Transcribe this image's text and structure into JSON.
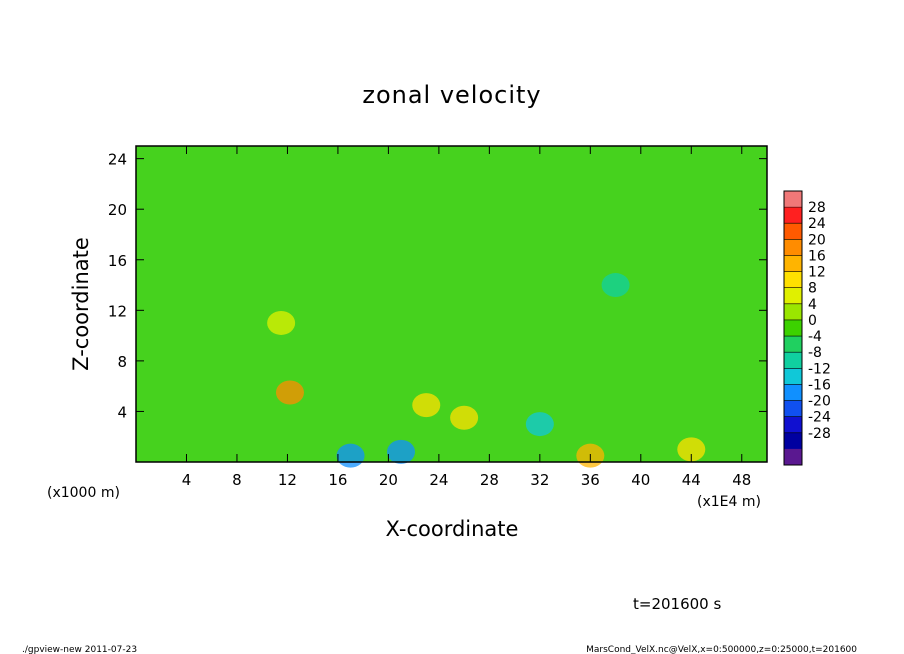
{
  "chart_data": {
    "type": "heatmap",
    "title": "zonal velocity",
    "xlabel": "X-coordinate",
    "ylabel": "Z-coordinate",
    "x_unit_label": "(x1E4 m)",
    "y_unit_label": "(x1000 m)",
    "x_ticks": [
      "4",
      "8",
      "12",
      "16",
      "20",
      "24",
      "28",
      "32",
      "36",
      "40",
      "44",
      "48"
    ],
    "y_ticks": [
      "4",
      "8",
      "12",
      "16",
      "20",
      "24"
    ],
    "xlim": [
      0,
      50
    ],
    "ylim": [
      0,
      25
    ],
    "colorbar": {
      "labels": [
        "28",
        "24",
        "20",
        "16",
        "12",
        "8",
        "4",
        "0",
        "-4",
        "-8",
        "-12",
        "-16",
        "-20",
        "-24",
        "-28"
      ],
      "colors": [
        "#f07878",
        "#ff2020",
        "#ff5a00",
        "#ff8c00",
        "#ffb400",
        "#ffe000",
        "#e0f000",
        "#9ae600",
        "#3cd200",
        "#20d060",
        "#10d0a0",
        "#10c8d8",
        "#1090ff",
        "#1050f0",
        "#1010d0",
        "#0000a0",
        "#5a1890"
      ],
      "min": -32,
      "max": 32
    },
    "field_features": [
      {
        "x": 12.2,
        "z": 5.5,
        "value": 20
      },
      {
        "x": 23,
        "z": 4.5,
        "value": 12
      },
      {
        "x": 26,
        "z": 3.5,
        "value": 10
      },
      {
        "x": 11.5,
        "z": 11,
        "value": 8
      },
      {
        "x": 17,
        "z": 0.5,
        "value": -16
      },
      {
        "x": 21,
        "z": 0.8,
        "value": -14
      },
      {
        "x": 36,
        "z": 0.5,
        "value": 14
      },
      {
        "x": 44,
        "z": 1,
        "value": 12
      },
      {
        "x": 32,
        "z": 3,
        "value": -10
      },
      {
        "x": 38,
        "z": 14,
        "value": -8
      }
    ]
  },
  "footer": {
    "time_label": "t=201600 s",
    "program": "./gpview-new   2011-07-23",
    "source": "MarsCond_VelX.nc@VelX,x=0:500000,z=0:25000,t=201600"
  }
}
